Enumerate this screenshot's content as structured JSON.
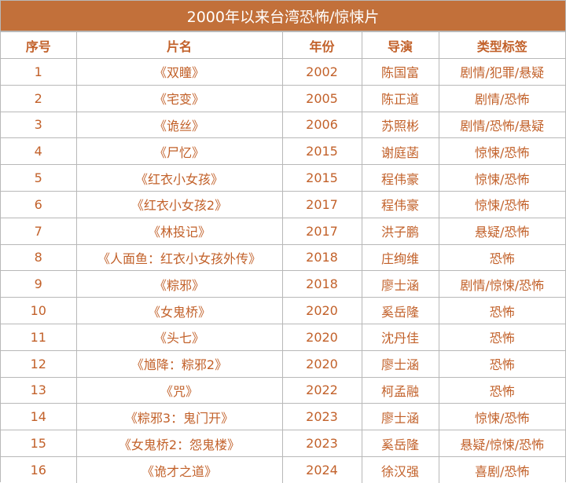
{
  "title": "2000年以来台湾恐怖/惊悚片",
  "colors": {
    "title_bg": "#c2703a",
    "text": "#c2612a",
    "border": "#b8b8b8"
  },
  "headers": [
    "序号",
    "片名",
    "年份",
    "导演",
    "类型标签"
  ],
  "rows": [
    [
      "1",
      "《双瞳》",
      "2002",
      "陈国富",
      "剧情/犯罪/悬疑"
    ],
    [
      "2",
      "《宅变》",
      "2005",
      "陈正道",
      "剧情/恐怖"
    ],
    [
      "3",
      "《诡丝》",
      "2006",
      "苏照彬",
      "剧情/恐怖/悬疑"
    ],
    [
      "4",
      "《尸忆》",
      "2015",
      "谢庭菡",
      "惊悚/恐怖"
    ],
    [
      "5",
      "《红衣小女孩》",
      "2015",
      "程伟豪",
      "惊悚/恐怖"
    ],
    [
      "6",
      "《红衣小女孩2》",
      "2017",
      "程伟豪",
      "惊悚/恐怖"
    ],
    [
      "7",
      "《林投记》",
      "2017",
      "洪子鹏",
      "悬疑/恐怖"
    ],
    [
      "8",
      "《人面鱼：红衣小女孩外传》",
      "2018",
      "庄绚维",
      "恐怖"
    ],
    [
      "9",
      "《粽邪》",
      "2018",
      "廖士涵",
      "剧情/惊悚/恐怖"
    ],
    [
      "10",
      "《女鬼桥》",
      "2020",
      "奚岳隆",
      "恐怖"
    ],
    [
      "11",
      "《头七》",
      "2020",
      "沈丹佳",
      "恐怖"
    ],
    [
      "12",
      "《馗降：粽邪2》",
      "2020",
      "廖士涵",
      "恐怖"
    ],
    [
      "13",
      "《咒》",
      "2022",
      "柯孟融",
      "恐怖"
    ],
    [
      "14",
      "《粽邪3：鬼门开》",
      "2023",
      "廖士涵",
      "惊悚/恐怖"
    ],
    [
      "15",
      "《女鬼桥2：怨鬼楼》",
      "2023",
      "奚岳隆",
      "悬疑/惊悚/恐怖"
    ],
    [
      "16",
      "《诡才之道》",
      "2024",
      "徐汉强",
      "喜剧/恐怖"
    ]
  ]
}
